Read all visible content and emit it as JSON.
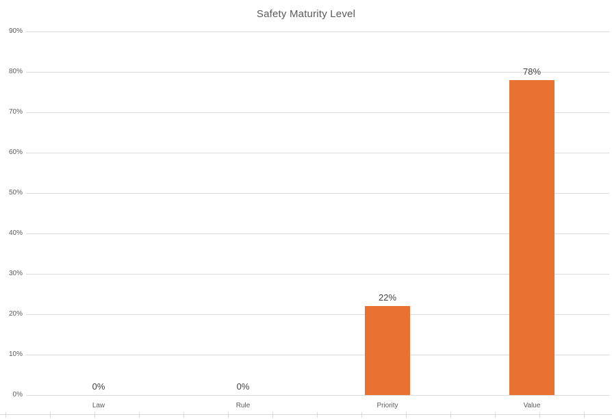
{
  "chart_data": {
    "type": "bar",
    "title": "Safety Maturity Level",
    "categories": [
      "Law",
      "Rule",
      "Priority",
      "Value"
    ],
    "values": [
      0,
      0,
      22,
      78
    ],
    "data_labels": [
      "0%",
      "0%",
      "22%",
      "78%"
    ],
    "xlabel": "",
    "ylabel": "",
    "y_axis": {
      "min": 0,
      "max": 90,
      "step": 10,
      "tick_labels": [
        "0%",
        "10%",
        "20%",
        "30%",
        "40%",
        "50%",
        "60%",
        "70%",
        "80%",
        "90%"
      ]
    },
    "grid": true,
    "legend": false,
    "bar_color": "#e97132"
  },
  "colors": {
    "bar": "#e97132",
    "gridline": "#d9d9d9",
    "axis_text": "#595959",
    "data_label": "#404040",
    "title_text": "#595959",
    "background": "#ffffff"
  }
}
